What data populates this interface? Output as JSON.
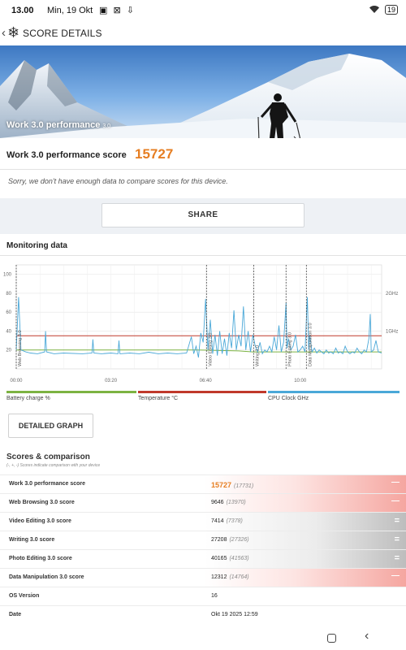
{
  "status_bar": {
    "time": "13.00",
    "date": "Min, 19 Okt",
    "notification_icons": "▣ ⊠ ⇩",
    "wifi_icon": "wifi-icon",
    "battery": "19"
  },
  "app_bar": {
    "title": "SCORE DETAILS",
    "back_icon": "chevron-left-icon",
    "app_icon": "snowflake-icon"
  },
  "hero": {
    "title": "Work 3.0 performance",
    "version": "3.0"
  },
  "score_card": {
    "label": "Work 3.0 performance score",
    "score": "15727",
    "score_color": "#e67e22",
    "message": "Sorry, we don't have enough data to compare scores for this device."
  },
  "share_button": {
    "label": "SHARE"
  },
  "monitoring": {
    "heading": "Monitoring data",
    "detailed_graph_label": "DETAILED GRAPH",
    "legend": [
      {
        "label": "Battery charge %",
        "color": "#7cb342"
      },
      {
        "label": "Temperature °C",
        "color": "#c0392b"
      },
      {
        "label": "CPU Clock GHz",
        "color": "#4aa8d8"
      }
    ]
  },
  "chart_data": {
    "type": "line",
    "xlabel": "",
    "ylabel": "",
    "x_ticks": [
      "00:00",
      "03:20",
      "06:40",
      "10:00"
    ],
    "x_tick_seconds": [
      0,
      200,
      400,
      600
    ],
    "x_range_seconds": [
      0,
      772
    ],
    "y_ticks_left": [
      20,
      40,
      60,
      80,
      100
    ],
    "ylim_left": [
      0,
      110
    ],
    "y_ticks_right": [
      "1GHz",
      "2GHz"
    ],
    "y_ticks_right_values": [
      1,
      2
    ],
    "ylim_right": [
      0,
      2.75
    ],
    "grid": true,
    "markers": [
      {
        "label": "Web Browsing 3.0",
        "x_seconds": 0
      },
      {
        "label": "Video Editing 3.0",
        "x_seconds": 402
      },
      {
        "label": "Writing 3.0",
        "x_seconds": 502
      },
      {
        "label": "Photo Editing 3.0",
        "x_seconds": 570
      },
      {
        "label": "Data Manipulation 3.0",
        "x_seconds": 613
      }
    ],
    "series": [
      {
        "name": "Battery charge %",
        "axis": "left",
        "color": "#7cb342",
        "x": [
          0,
          380,
          470,
          500,
          772
        ],
        "y": [
          20,
          20,
          19,
          18,
          18
        ]
      },
      {
        "name": "Temperature °C",
        "axis": "left",
        "color": "#c0392b",
        "x": [
          0,
          772
        ],
        "y": [
          35,
          35
        ]
      },
      {
        "name": "CPU Clock GHz",
        "axis": "right",
        "color": "#4aa8d8",
        "x": [
          0,
          5,
          10,
          20,
          30,
          45,
          60,
          62,
          64,
          80,
          100,
          140,
          160,
          162,
          164,
          180,
          200,
          215,
          217,
          219,
          240,
          260,
          280,
          300,
          320,
          340,
          360,
          370,
          375,
          380,
          385,
          390,
          395,
          400,
          405,
          410,
          415,
          420,
          425,
          430,
          435,
          440,
          445,
          450,
          455,
          460,
          465,
          470,
          475,
          480,
          485,
          490,
          495,
          500,
          505,
          510,
          515,
          520,
          525,
          530,
          535,
          540,
          545,
          550,
          555,
          560,
          565,
          570,
          572,
          575,
          580,
          585,
          590,
          595,
          600,
          605,
          610,
          615,
          618,
          620,
          625,
          630,
          635,
          640,
          645,
          650,
          655,
          660,
          665,
          670,
          675,
          680,
          685,
          690,
          695,
          700,
          705,
          710,
          715,
          720,
          725,
          730,
          735,
          740,
          745,
          748,
          750,
          755,
          760,
          765,
          772
        ],
        "y": [
          0.5,
          1.9,
          0.5,
          0.45,
          0.42,
          0.4,
          0.45,
          1.0,
          0.45,
          0.4,
          0.42,
          0.4,
          0.42,
          0.78,
          0.42,
          0.4,
          0.42,
          0.4,
          0.75,
          0.4,
          0.42,
          0.4,
          0.44,
          0.4,
          0.42,
          0.4,
          0.42,
          0.85,
          0.4,
          0.6,
          0.3,
          0.95,
          0.7,
          1.85,
          0.5,
          1.3,
          0.4,
          0.9,
          0.35,
          1.0,
          0.4,
          0.8,
          0.35,
          0.95,
          0.55,
          1.55,
          0.5,
          0.9,
          0.6,
          1.65,
          0.5,
          1.0,
          0.45,
          0.9,
          0.6,
          0.45,
          0.7,
          0.4,
          0.5,
          0.45,
          0.6,
          0.45,
          0.85,
          0.5,
          1.15,
          0.45,
          0.7,
          1.75,
          0.55,
          0.8,
          0.5,
          0.6,
          0.9,
          0.45,
          0.5,
          0.6,
          0.45,
          1.9,
          0.5,
          0.9,
          0.45,
          0.55,
          0.42,
          0.5,
          0.45,
          0.4,
          0.5,
          0.42,
          0.45,
          0.4,
          0.55,
          0.42,
          0.45,
          0.4,
          0.6,
          0.45,
          0.4,
          0.45,
          0.42,
          0.55,
          0.45,
          0.4,
          0.5,
          0.45,
          0.8,
          1.45,
          0.45,
          0.5,
          0.75,
          0.45,
          0.42
        ]
      }
    ]
  },
  "scores": {
    "heading": "Scores & comparison",
    "subheading": "(-, +, -) Scores indicate comparison with your device",
    "rows": [
      {
        "name": "Work 3.0 performance score",
        "value": "15727",
        "compare": "(17731)",
        "indicator": "minus",
        "highlight": "red",
        "value_color": "#e67e22"
      },
      {
        "name": "Web Browsing 3.0 score",
        "value": "9646",
        "compare": "(13970)",
        "indicator": "minus",
        "highlight": "red",
        "value_color": "#222222"
      },
      {
        "name": "Video Editing 3.0 score",
        "value": "7414",
        "compare": "(7378)",
        "indicator": "equal",
        "highlight": "gray",
        "value_color": "#222222"
      },
      {
        "name": "Writing 3.0 score",
        "value": "27208",
        "compare": "(27326)",
        "indicator": "equal",
        "highlight": "gray",
        "value_color": "#222222"
      },
      {
        "name": "Photo Editing 3.0 score",
        "value": "40165",
        "compare": "(41563)",
        "indicator": "equal",
        "highlight": "gray",
        "value_color": "#222222"
      },
      {
        "name": "Data Manipulation 3.0 score",
        "value": "12312",
        "compare": "(14764)",
        "indicator": "minus",
        "highlight": "red",
        "value_color": "#222222"
      },
      {
        "name": "OS Version",
        "value": "16",
        "compare": "",
        "indicator": "",
        "highlight": "",
        "value_color": "#222222"
      },
      {
        "name": "Date",
        "value": "Okt 19 2025 12:59",
        "compare": "",
        "indicator": "",
        "highlight": "",
        "value_color": "#222222"
      }
    ]
  },
  "nav_bar": {
    "home_icon": "square-home-icon",
    "back_icon": "triangle-back-icon"
  }
}
